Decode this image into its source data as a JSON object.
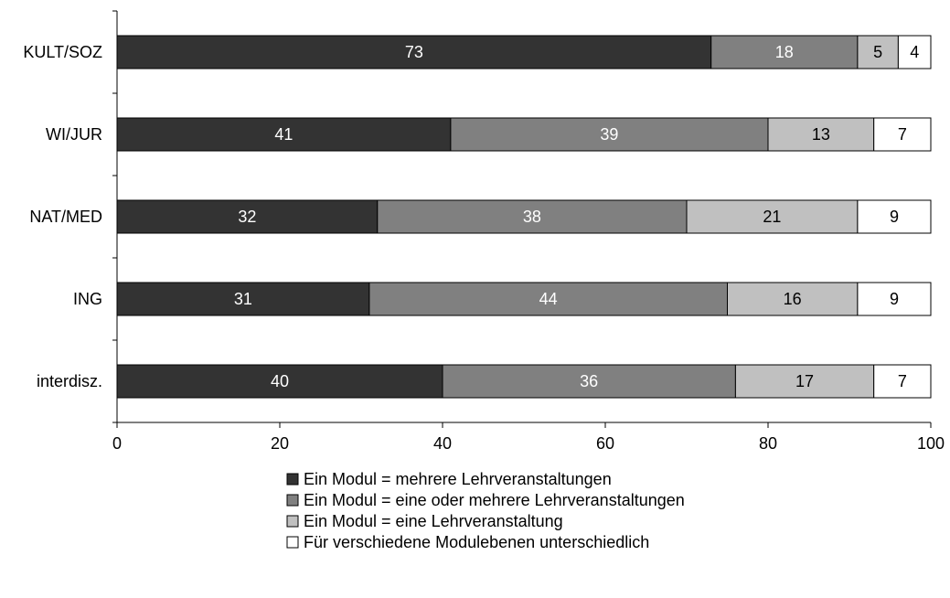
{
  "chart_data": {
    "type": "bar",
    "orientation": "horizontal",
    "stacked": true,
    "categories": [
      "KULT/SOZ",
      "WI/JUR",
      "NAT/MED",
      "ING",
      "interdisz."
    ],
    "series": [
      {
        "name": "Ein Modul = mehrere Lehrveranstaltungen",
        "values": [
          73,
          41,
          32,
          31,
          40
        ],
        "color": "#333333",
        "label_color": "#ffffff"
      },
      {
        "name": "Ein Modul = eine oder mehrere Lehrveranstaltungen",
        "values": [
          18,
          39,
          38,
          44,
          36
        ],
        "color": "#808080",
        "label_color": "#ffffff"
      },
      {
        "name": "Ein Modul = eine Lehrveranstaltung",
        "values": [
          5,
          13,
          21,
          16,
          17
        ],
        "color": "#c0c0c0",
        "label_color": "#000000"
      },
      {
        "name": "Für verschiedene Modulebenen unterschiedlich",
        "values": [
          4,
          7,
          9,
          9,
          7
        ],
        "color": "#ffffff",
        "label_color": "#000000"
      }
    ],
    "xlim": [
      0,
      100
    ],
    "xticks": [
      0,
      20,
      40,
      60,
      80,
      100
    ],
    "grid": false,
    "legend_position": "bottom"
  }
}
